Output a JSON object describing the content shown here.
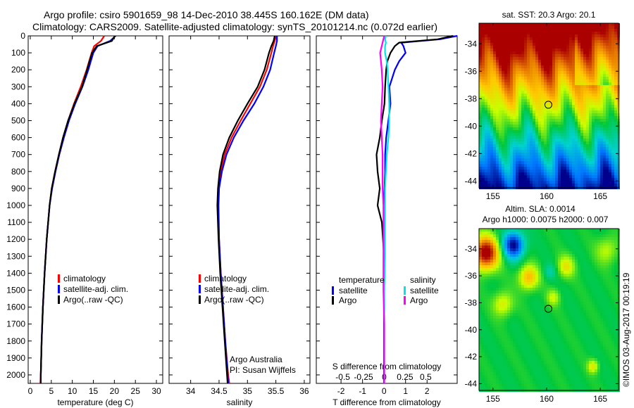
{
  "header": {
    "title_line1": "Argo profile: csiro 5901659_98 14-Dec-2010 38.445S 160.162E (DM data)",
    "title_line2": "Climatology: CARS2009. Satellite-adjusted climatology: synTS_20101214.nc (0.072d earlier)"
  },
  "colors": {
    "climatology": "#ff0000",
    "satellite": "#0000ff",
    "argo": "#000000",
    "sal_satellite": "#00e5e5",
    "sal_argo": "#ff00ff"
  },
  "credit": {
    "argo_australia": "Argo Australia",
    "pi": "PI: Susan Wijffels"
  },
  "watermark": "©IMOS 03-Aug-2017 00:19:19",
  "chart_data": [
    {
      "type": "line",
      "id": "temperature",
      "xlabel": "temperature (deg C)",
      "ylabel": "",
      "xlim": [
        -0.5,
        31.5
      ],
      "ylim": [
        2050,
        0
      ],
      "xticks": [
        0,
        5,
        10,
        15,
        20,
        25,
        30
      ],
      "yticks": [
        0,
        100,
        200,
        300,
        400,
        500,
        600,
        700,
        800,
        900,
        1000,
        1100,
        1200,
        1300,
        1400,
        1500,
        1600,
        1700,
        1800,
        1900,
        2000
      ],
      "legend": [
        "climatology",
        "satellite-adj. clim.",
        "Argo(..raw -QC)"
      ],
      "depth": [
        0,
        30,
        60,
        100,
        150,
        200,
        300,
        400,
        500,
        600,
        700,
        800,
        900,
        1000,
        1200,
        1400,
        1600,
        1800,
        2000,
        2050
      ],
      "series": [
        {
          "name": "climatology",
          "color": "#ff0000",
          "values": [
            17.6,
            16.8,
            15.2,
            14.6,
            14.0,
            13.4,
            12.0,
            10.4,
            9.0,
            7.8,
            6.8,
            5.9,
            5.1,
            4.6,
            3.9,
            3.4,
            3.0,
            2.7,
            2.5,
            2.4
          ]
        },
        {
          "name": "satellite-adj. clim.",
          "color": "#0000ff",
          "values": [
            20.3,
            19.0,
            16.0,
            15.0,
            14.4,
            13.8,
            12.4,
            10.7,
            9.2,
            8.0,
            6.9,
            6.0,
            5.2,
            4.6,
            3.9,
            3.4,
            3.0,
            2.7,
            2.5,
            2.5
          ]
        },
        {
          "name": "Argo(..raw -QC)",
          "color": "#000000",
          "values": [
            20.1,
            19.4,
            15.8,
            14.7,
            14.1,
            13.5,
            12.3,
            10.5,
            9.0,
            7.8,
            6.8,
            5.9,
            5.1,
            4.6,
            3.9,
            3.4,
            3.0,
            2.7,
            2.5,
            2.5
          ]
        }
      ]
    },
    {
      "type": "line",
      "id": "salinity",
      "xlabel": "salinity",
      "xlim": [
        33.62,
        36.1
      ],
      "ylim": [
        2050,
        0
      ],
      "xticks": [
        34,
        34.5,
        35,
        35.5,
        36
      ],
      "legend": [
        "climatology",
        "satellite-adj. clim.",
        "Argo(..raw -QC)"
      ],
      "depth": [
        0,
        30,
        60,
        100,
        200,
        300,
        400,
        500,
        600,
        700,
        800,
        900,
        1000,
        1200,
        1400,
        1600,
        1800,
        2000,
        2050
      ],
      "series": [
        {
          "name": "climatology",
          "color": "#ff0000",
          "values": [
            35.5,
            35.48,
            35.45,
            35.42,
            35.34,
            35.22,
            35.05,
            34.88,
            34.72,
            34.6,
            34.53,
            34.49,
            34.48,
            34.5,
            34.53,
            34.57,
            34.61,
            34.66,
            34.68
          ]
        },
        {
          "name": "satellite-adj. clim.",
          "color": "#0000ff",
          "values": [
            35.52,
            35.52,
            35.5,
            35.47,
            35.4,
            35.28,
            35.12,
            34.93,
            34.76,
            34.63,
            34.55,
            34.5,
            34.49,
            34.5,
            34.53,
            34.57,
            34.61,
            34.65,
            34.66
          ]
        },
        {
          "name": "Argo(..raw -QC)",
          "color": "#000000",
          "values": [
            35.48,
            35.46,
            35.42,
            35.38,
            35.3,
            35.18,
            35.0,
            34.83,
            34.68,
            34.57,
            34.51,
            34.48,
            34.47,
            34.49,
            34.52,
            34.56,
            34.6,
            34.64,
            34.65
          ]
        }
      ]
    },
    {
      "type": "line",
      "id": "differences",
      "xlabel": "T difference from climatology",
      "xlabel_top": "S difference from climatology",
      "xlim": [
        -3.15,
        3.4
      ],
      "xlim_top": [
        -0.82,
        0.88
      ],
      "ylim": [
        2050,
        0
      ],
      "xticks": [
        -2,
        -1,
        0,
        1,
        2
      ],
      "xticks_top": [
        -0.5,
        -0.25,
        0,
        0.25,
        0.5
      ],
      "legend_temperature_title": "temperature",
      "legend_salinity_title": "salinity",
      "legend_temperature": [
        "satellite",
        "Argo"
      ],
      "legend_salinity": [
        "satellite",
        "Argo"
      ],
      "depth": [
        0,
        20,
        40,
        60,
        100,
        150,
        200,
        300,
        400,
        500,
        600,
        700,
        800,
        900,
        1000,
        1100,
        1300,
        1500,
        1700,
        1900,
        2050
      ],
      "series": [
        {
          "name": "T satellite",
          "axis": "T",
          "color": "#0000ff",
          "values": [
            3.4,
            2.6,
            0.8,
            0.9,
            1.0,
            0.7,
            0.5,
            0.25,
            0.3,
            0.2,
            0.1,
            0.05,
            0.05,
            0.02,
            0.0,
            0.0,
            0.0,
            0.0,
            0.0,
            0.0,
            0.0
          ]
        },
        {
          "name": "T Argo",
          "axis": "T",
          "color": "#000000",
          "values": [
            3.2,
            2.5,
            0.7,
            0.5,
            0.3,
            0.15,
            0.1,
            0.05,
            0.02,
            -0.1,
            -0.2,
            -0.35,
            -0.3,
            -0.2,
            -0.3,
            -0.1,
            0.0,
            0.0,
            0.0,
            0.0,
            0.0
          ]
        },
        {
          "name": "S satellite",
          "axis": "S",
          "color": "#00e5e5",
          "values": [
            0.02,
            0.01,
            0.02,
            0.01,
            0.01,
            0.03,
            0.04,
            0.05,
            0.06,
            0.06,
            0.05,
            0.03,
            0.02,
            0.01,
            0.01,
            0.01,
            0.01,
            0.0,
            0.0,
            0.0,
            0.0
          ]
        },
        {
          "name": "S Argo",
          "axis": "S",
          "color": "#ff00ff",
          "values": [
            0.0,
            -0.01,
            -0.02,
            -0.03,
            -0.05,
            -0.04,
            -0.03,
            -0.02,
            -0.03,
            -0.04,
            -0.03,
            -0.02,
            -0.02,
            -0.02,
            -0.01,
            -0.01,
            -0.01,
            -0.01,
            0.0,
            0.0,
            0.0
          ]
        }
      ]
    },
    {
      "type": "heatmap",
      "id": "sst-map",
      "title": "sat. SST: 20.3 Argo: 20.1",
      "xlim": [
        153.7,
        166.7
      ],
      "ylim": [
        -44.5,
        -32.5
      ],
      "xticks": [
        155,
        160,
        165
      ],
      "yticks": [
        -34,
        -36,
        -38,
        -40,
        -42,
        -44
      ],
      "float_position": [
        160.162,
        -38.445
      ]
    },
    {
      "type": "heatmap",
      "id": "sla-map",
      "title_line1": "Altim. SLA: 0.0014",
      "title_line2": "Argo h1000: 0.0075 h2000: 0.007",
      "xlim": [
        153.7,
        166.7
      ],
      "ylim": [
        -44.5,
        -32.5
      ],
      "xticks": [
        155,
        160,
        165
      ],
      "yticks": [
        -34,
        -36,
        -38,
        -40,
        -42,
        -44
      ],
      "float_position": [
        160.162,
        -38.445
      ]
    }
  ]
}
